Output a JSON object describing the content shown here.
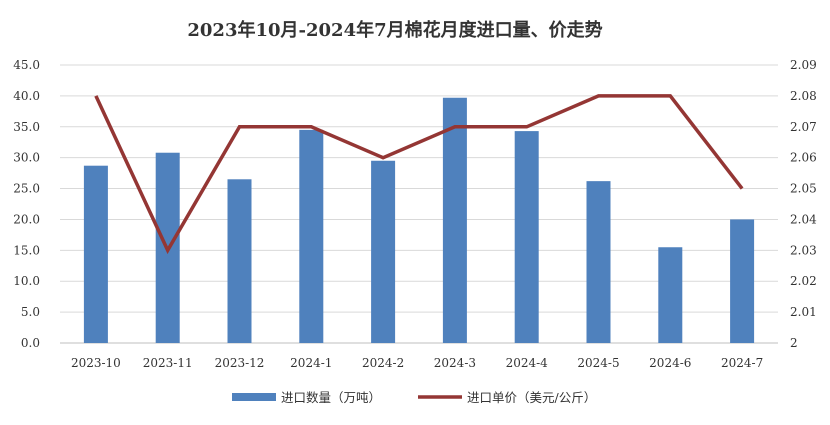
{
  "chart_data": {
    "type": "bar+line",
    "title": "2023年10月-2024年7月棉花月度进口量、价走势",
    "categories": [
      "2023-10",
      "2023-11",
      "2023-12",
      "2024-1",
      "2024-2",
      "2024-3",
      "2024-4",
      "2024-5",
      "2024-6",
      "2024-7"
    ],
    "series": [
      {
        "name": "进口数量（万吨）",
        "type": "bar",
        "axis": "left",
        "color": "#4F81BD",
        "values": [
          28.7,
          30.8,
          26.5,
          34.5,
          29.5,
          39.7,
          34.3,
          26.2,
          15.5,
          20.0
        ]
      },
      {
        "name": "进口单价（美元/公斤）",
        "type": "line",
        "axis": "right",
        "color": "#943634",
        "values": [
          2.08,
          2.03,
          2.07,
          2.07,
          2.06,
          2.07,
          2.07,
          2.08,
          2.08,
          2.05
        ]
      }
    ],
    "y_left": {
      "min": 0,
      "max": 45,
      "step": 5,
      "ticks": [
        "0.0",
        "5.0",
        "10.0",
        "15.0",
        "20.0",
        "25.0",
        "30.0",
        "35.0",
        "40.0",
        "45.0"
      ]
    },
    "y_right": {
      "min": 2.0,
      "max": 2.09,
      "step": 0.01,
      "ticks": [
        "2",
        "2.01",
        "2.02",
        "2.03",
        "2.04",
        "2.05",
        "2.06",
        "2.07",
        "2.08",
        "2.09"
      ]
    },
    "grid": true,
    "legend_position": "bottom"
  }
}
